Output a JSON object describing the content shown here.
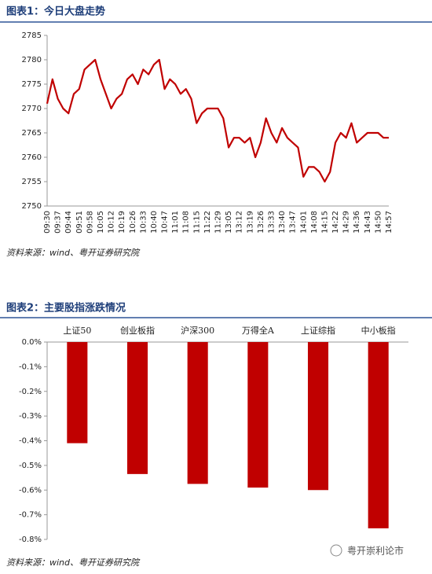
{
  "chart_data": [
    {
      "type": "line",
      "title": "图表1：今日大盘走势",
      "source": "资料来源：wind、粤开证券研究院",
      "color": "#c00000",
      "categories": [
        "09:30",
        null,
        "09:37",
        null,
        "09:44",
        null,
        "09:51",
        null,
        "09:58",
        null,
        "10:05",
        null,
        "10:12",
        null,
        "10:19",
        null,
        "10:26",
        null,
        "10:33",
        null,
        "10:40",
        null,
        "10:47",
        null,
        "11:01",
        null,
        "11:08",
        null,
        "11:15",
        null,
        "11:22",
        null,
        "11:29",
        null,
        "13:05",
        null,
        "13:12",
        null,
        "13:19",
        null,
        "13:26",
        null,
        "13:33",
        null,
        "13:40",
        null,
        "13:47",
        null,
        "14:01",
        null,
        "14:08",
        null,
        "14:15",
        null,
        "14:22",
        null,
        "14:29",
        null,
        "14:36",
        null,
        "14:43",
        null,
        "14:50",
        null,
        "14:57"
      ],
      "values": [
        2771,
        2776,
        2772,
        2770,
        2769,
        2773,
        2774,
        2778,
        2779,
        2780,
        2776,
        2773,
        2770,
        2772,
        2773,
        2776,
        2777,
        2775,
        2778,
        2777,
        2779,
        2780,
        2774,
        2776,
        2775,
        2773,
        2774,
        2772,
        2767,
        2769,
        2770,
        2770,
        2770,
        2768,
        2762,
        2764,
        2764,
        2763,
        2764,
        2760,
        2763,
        2768,
        2765,
        2763,
        2766,
        2764,
        2763,
        2762,
        2756,
        2758,
        2758,
        2757,
        2755,
        2757,
        2763,
        2765,
        2764,
        2767,
        2763,
        2764,
        2765,
        2765,
        2765,
        2764,
        2764
      ],
      "ylim": [
        2750,
        2785
      ],
      "yticks": [
        2750,
        2755,
        2760,
        2765,
        2770,
        2775,
        2780,
        2785
      ]
    },
    {
      "type": "bar",
      "title": "图表2：主要股指涨跌情况",
      "source": "资料来源：wind、粤开证券研究院",
      "color": "#c00000",
      "categories": [
        "上证50",
        "创业板指",
        "沪深300",
        "万得全A",
        "上证综指",
        "中小板指"
      ],
      "values": [
        -0.41,
        -0.535,
        -0.575,
        -0.59,
        -0.6,
        -0.755
      ],
      "ylim": [
        -0.8,
        0
      ],
      "yticks": [
        {
          "value": 0,
          "label": "0.0%"
        },
        {
          "value": -0.1,
          "label": "-0.1%"
        },
        {
          "value": -0.2,
          "label": "-0.2%"
        },
        {
          "value": -0.3,
          "label": "-0.3%"
        },
        {
          "value": -0.4,
          "label": "-0.4%"
        },
        {
          "value": -0.5,
          "label": "-0.5%"
        },
        {
          "value": -0.6,
          "label": "-0.6%"
        },
        {
          "value": -0.7,
          "label": "-0.7%"
        },
        {
          "value": -0.8,
          "label": "-0.8%"
        }
      ]
    }
  ],
  "watermark": "粤开崇利论市"
}
